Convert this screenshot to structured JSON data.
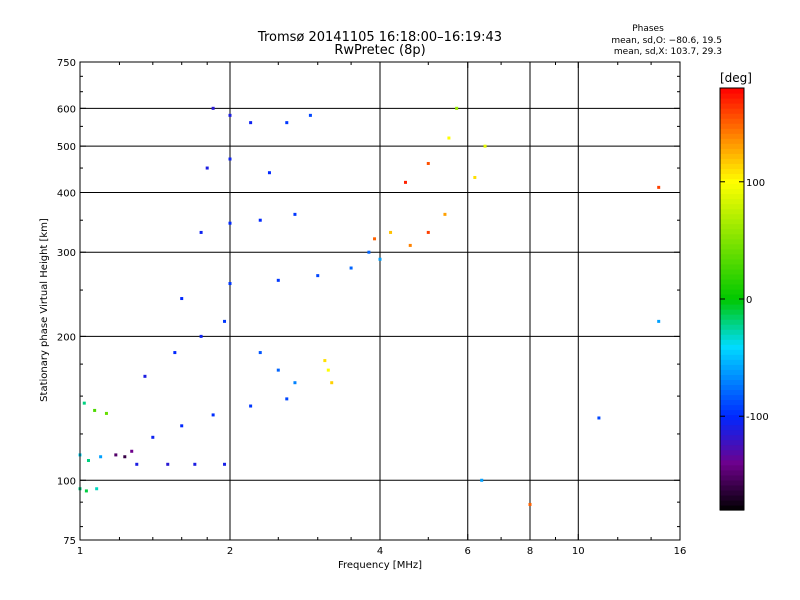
{
  "chart_data": {
    "type": "scatter",
    "title": "Tromsø 20141105 16:18:00–16:19:43",
    "subtitle": "RwPretec (8p)",
    "xlabel": "Frequency [MHz]",
    "ylabel": "Stationary phase Virtual Height [km]",
    "xscale": "log",
    "yscale": "log",
    "xlim": [
      1,
      16
    ],
    "ylim": [
      75,
      750
    ],
    "x_ticks": [
      1,
      2,
      4,
      6,
      8,
      10,
      16
    ],
    "y_ticks": [
      75,
      100,
      200,
      300,
      400,
      500,
      600,
      750
    ],
    "x_grid": [
      2,
      4,
      6,
      8,
      10
    ],
    "y_grid": [
      100,
      200,
      300,
      400,
      500,
      600
    ],
    "grid": true,
    "phases_box": {
      "header": "Phases",
      "line1": "mean, sd,O: −80.6, 19.5",
      "line2": "mean, sd,X: 103.7, 29.3"
    },
    "colorbar": {
      "label": "[deg]",
      "ticks": [
        100,
        0,
        -100
      ],
      "range": [
        -180,
        180
      ],
      "colormap": "rainbow (black → purple → blue → cyan → green → yellow → orange → red)"
    },
    "series": [
      {
        "points": [
          {
            "x": 1.0,
            "y": 96,
            "p": -20
          },
          {
            "x": 1.03,
            "y": 95,
            "p": -10
          },
          {
            "x": 1.08,
            "y": 96,
            "p": -30
          },
          {
            "x": 1.0,
            "y": 113,
            "p": -40
          },
          {
            "x": 1.04,
            "y": 110,
            "p": -20
          },
          {
            "x": 1.1,
            "y": 112,
            "p": -60
          },
          {
            "x": 1.02,
            "y": 145,
            "p": -20
          },
          {
            "x": 1.07,
            "y": 140,
            "p": 30
          },
          {
            "x": 1.13,
            "y": 138,
            "p": 40
          },
          {
            "x": 1.18,
            "y": 113,
            "p": -150
          },
          {
            "x": 1.23,
            "y": 112,
            "p": -160
          },
          {
            "x": 1.27,
            "y": 115,
            "p": -140
          },
          {
            "x": 1.3,
            "y": 108,
            "p": -110
          },
          {
            "x": 1.5,
            "y": 108,
            "p": -115
          },
          {
            "x": 1.7,
            "y": 108,
            "p": -110
          },
          {
            "x": 1.95,
            "y": 108,
            "p": -108
          },
          {
            "x": 1.4,
            "y": 123,
            "p": -105
          },
          {
            "x": 1.6,
            "y": 130,
            "p": -100
          },
          {
            "x": 1.85,
            "y": 137,
            "p": -98
          },
          {
            "x": 2.2,
            "y": 143,
            "p": -95
          },
          {
            "x": 2.6,
            "y": 148,
            "p": -90
          },
          {
            "x": 1.35,
            "y": 165,
            "p": -110
          },
          {
            "x": 1.55,
            "y": 185,
            "p": -100
          },
          {
            "x": 1.75,
            "y": 200,
            "p": -105
          },
          {
            "x": 1.95,
            "y": 215,
            "p": -95
          },
          {
            "x": 2.3,
            "y": 185,
            "p": -85
          },
          {
            "x": 2.5,
            "y": 170,
            "p": -80
          },
          {
            "x": 2.7,
            "y": 160,
            "p": -70
          },
          {
            "x": 1.6,
            "y": 240,
            "p": -100
          },
          {
            "x": 2.0,
            "y": 258,
            "p": -95
          },
          {
            "x": 2.5,
            "y": 262,
            "p": -95
          },
          {
            "x": 3.0,
            "y": 268,
            "p": -90
          },
          {
            "x": 3.5,
            "y": 278,
            "p": -80
          },
          {
            "x": 4.0,
            "y": 290,
            "p": -60
          },
          {
            "x": 1.75,
            "y": 330,
            "p": -105
          },
          {
            "x": 2.0,
            "y": 345,
            "p": -100
          },
          {
            "x": 2.3,
            "y": 350,
            "p": -100
          },
          {
            "x": 2.7,
            "y": 360,
            "p": -95
          },
          {
            "x": 1.8,
            "y": 450,
            "p": -110
          },
          {
            "x": 2.0,
            "y": 470,
            "p": -105
          },
          {
            "x": 2.4,
            "y": 440,
            "p": -100
          },
          {
            "x": 1.85,
            "y": 600,
            "p": -115
          },
          {
            "x": 2.0,
            "y": 580,
            "p": -110
          },
          {
            "x": 2.2,
            "y": 560,
            "p": -105
          },
          {
            "x": 2.6,
            "y": 560,
            "p": -95
          },
          {
            "x": 2.9,
            "y": 580,
            "p": -90
          },
          {
            "x": 3.1,
            "y": 178,
            "p": 110
          },
          {
            "x": 3.15,
            "y": 170,
            "p": 100
          },
          {
            "x": 3.2,
            "y": 160,
            "p": 115
          },
          {
            "x": 3.8,
            "y": 300,
            "p": -80
          },
          {
            "x": 3.9,
            "y": 320,
            "p": 150
          },
          {
            "x": 4.2,
            "y": 330,
            "p": 120
          },
          {
            "x": 4.6,
            "y": 310,
            "p": 140
          },
          {
            "x": 5.0,
            "y": 330,
            "p": 160
          },
          {
            "x": 5.4,
            "y": 360,
            "p": 130
          },
          {
            "x": 4.5,
            "y": 420,
            "p": 170
          },
          {
            "x": 5.0,
            "y": 460,
            "p": 155
          },
          {
            "x": 5.5,
            "y": 520,
            "p": 100
          },
          {
            "x": 5.7,
            "y": 600,
            "p": 60
          },
          {
            "x": 6.2,
            "y": 430,
            "p": 110
          },
          {
            "x": 6.5,
            "y": 500,
            "p": 90
          },
          {
            "x": 6.4,
            "y": 100,
            "p": -60
          },
          {
            "x": 8.0,
            "y": 89,
            "p": 150
          },
          {
            "x": 11.0,
            "y": 135,
            "p": -90
          },
          {
            "x": 14.5,
            "y": 410,
            "p": 160
          },
          {
            "x": 14.5,
            "y": 215,
            "p": -60
          }
        ]
      }
    ]
  }
}
